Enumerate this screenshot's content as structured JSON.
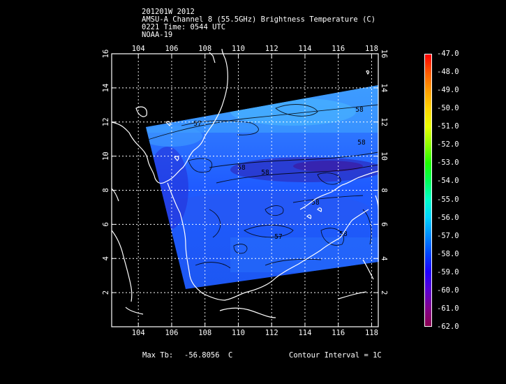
{
  "header": {
    "line1": "201201W 2012",
    "line2": "AMSU-A Channel 8 (55.5GHz) Brightness Temperature (C)",
    "line3": "0221 Time: 0544 UTC",
    "line4": "NOAA-19"
  },
  "map": {
    "lon_ticks": [
      "104",
      "106",
      "108",
      "110",
      "112",
      "114",
      "116",
      "118"
    ],
    "lat_ticks": [
      "2",
      "4",
      "6",
      "8",
      "10",
      "12",
      "14",
      "16"
    ],
    "lon_range": [
      102.4,
      118.4
    ],
    "lat_range": [
      0,
      16
    ],
    "contour_labels": [
      "57",
      "58",
      "58",
      "58",
      "58",
      "58",
      "57",
      "58"
    ]
  },
  "colorbar": {
    "labels": [
      "-47.0",
      "-48.0",
      "-49.0",
      "-50.0",
      "-51.0",
      "-52.0",
      "-53.0",
      "-54.0",
      "-55.0",
      "-56.0",
      "-57.0",
      "-58.0",
      "-59.0",
      "-60.0",
      "-61.0",
      "-62.0"
    ],
    "range": [
      -62,
      -47
    ]
  },
  "footer": {
    "max_label": "Max Tb:",
    "max_value": "-56.8056",
    "max_unit": "C",
    "contour": "Contour Interval = 1C"
  }
}
